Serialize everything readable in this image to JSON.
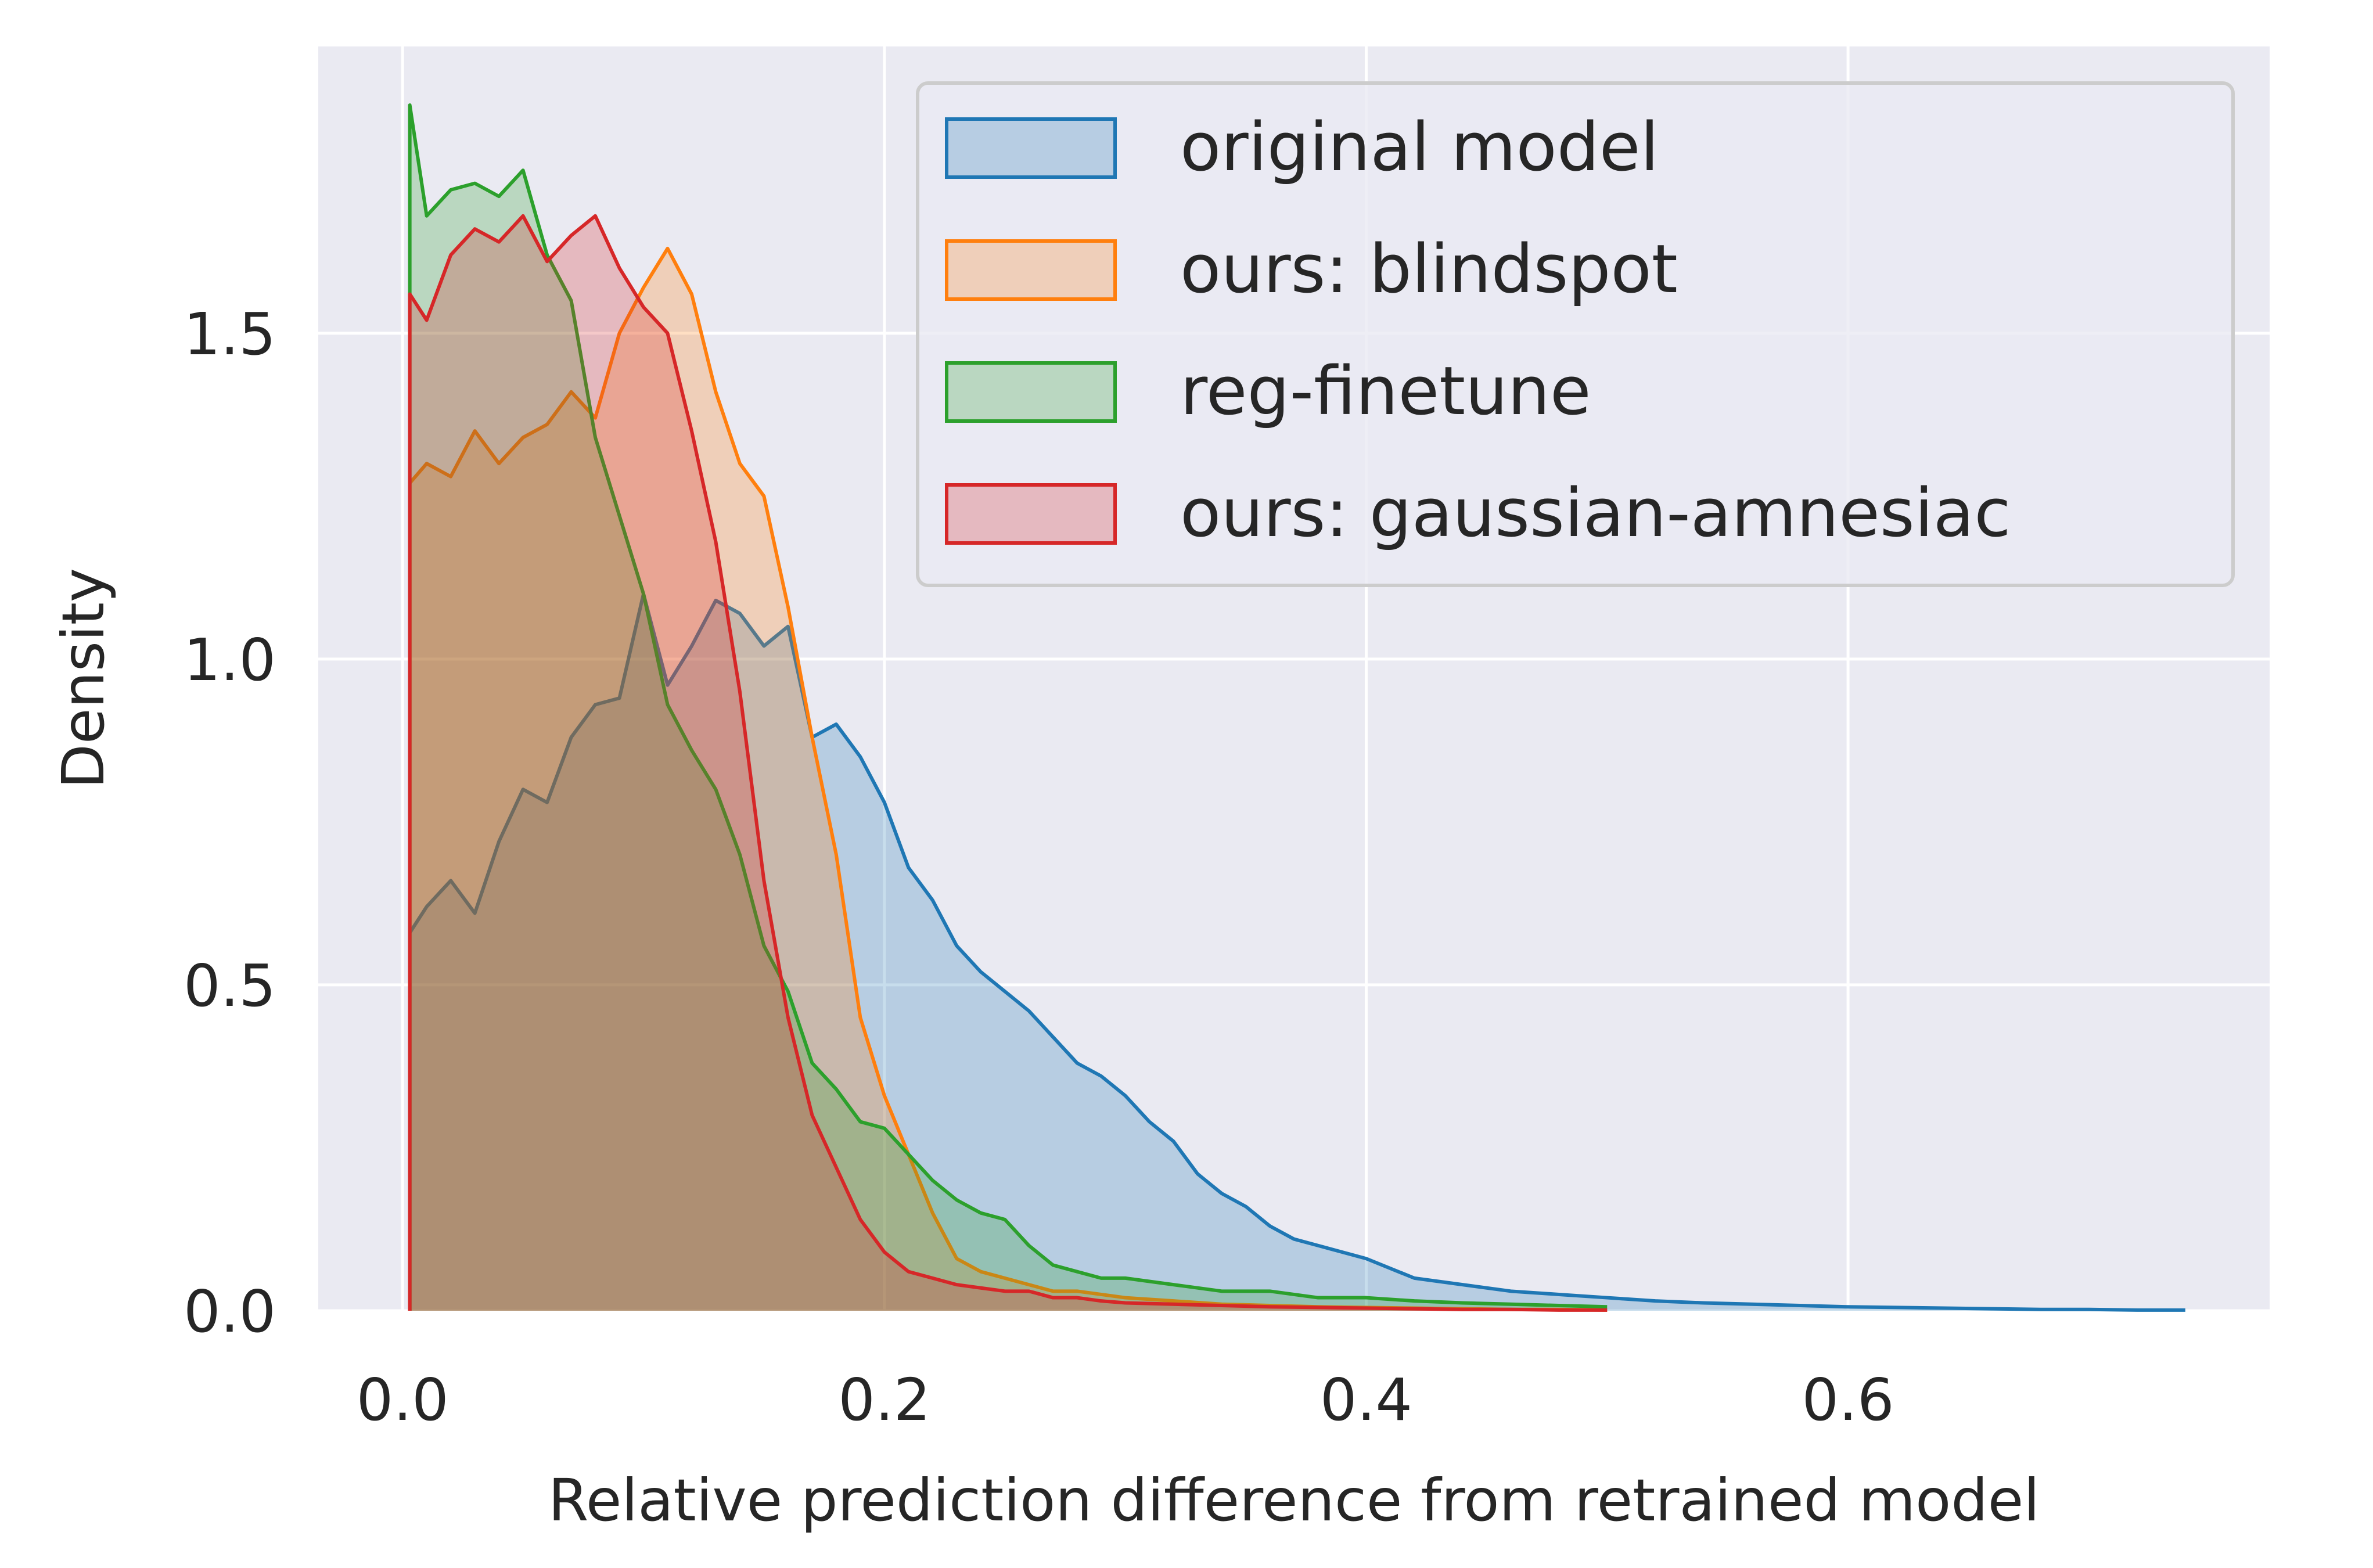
{
  "chart_data": {
    "type": "area",
    "title": "",
    "xlabel": "Relative prediction difference from retrained model",
    "ylabel": "Density",
    "xlim": [
      -0.035,
      0.775
    ],
    "ylim": [
      0,
      1.94
    ],
    "xticks": [
      0.0,
      0.2,
      0.4,
      0.6
    ],
    "xtick_labels": [
      "0.0",
      "0.2",
      "0.4",
      "0.6"
    ],
    "yticks": [
      0.0,
      0.5,
      1.0,
      1.5
    ],
    "ytick_labels": [
      "0.0",
      "0.5",
      "1.0",
      "1.5"
    ],
    "grid": true,
    "legend_position": "top-right",
    "series": [
      {
        "name": "original model",
        "color": "#1f77b4",
        "x": [
          0.003,
          0.01,
          0.02,
          0.03,
          0.04,
          0.05,
          0.06,
          0.07,
          0.08,
          0.09,
          0.1,
          0.11,
          0.12,
          0.13,
          0.14,
          0.15,
          0.16,
          0.17,
          0.18,
          0.19,
          0.2,
          0.21,
          0.22,
          0.23,
          0.24,
          0.25,
          0.26,
          0.27,
          0.28,
          0.29,
          0.3,
          0.31,
          0.32,
          0.33,
          0.34,
          0.35,
          0.36,
          0.37,
          0.38,
          0.39,
          0.4,
          0.42,
          0.44,
          0.46,
          0.48,
          0.5,
          0.52,
          0.54,
          0.56,
          0.58,
          0.6,
          0.62,
          0.64,
          0.66,
          0.68,
          0.7,
          0.72,
          0.74
        ],
        "values": [
          0.58,
          0.62,
          0.66,
          0.61,
          0.72,
          0.8,
          0.78,
          0.88,
          0.93,
          0.94,
          1.1,
          0.96,
          1.02,
          1.09,
          1.07,
          1.02,
          1.05,
          0.88,
          0.9,
          0.85,
          0.78,
          0.68,
          0.63,
          0.56,
          0.52,
          0.49,
          0.46,
          0.42,
          0.38,
          0.36,
          0.33,
          0.29,
          0.26,
          0.21,
          0.18,
          0.16,
          0.13,
          0.11,
          0.1,
          0.09,
          0.08,
          0.05,
          0.04,
          0.03,
          0.025,
          0.02,
          0.015,
          0.012,
          0.01,
          0.008,
          0.006,
          0.005,
          0.004,
          0.003,
          0.002,
          0.002,
          0.001,
          0.001
        ]
      },
      {
        "name": "ours: blindspot",
        "color": "#ff7f0e",
        "x": [
          0.003,
          0.01,
          0.02,
          0.03,
          0.04,
          0.05,
          0.06,
          0.07,
          0.08,
          0.09,
          0.1,
          0.11,
          0.12,
          0.13,
          0.14,
          0.15,
          0.16,
          0.17,
          0.18,
          0.19,
          0.2,
          0.21,
          0.22,
          0.23,
          0.24,
          0.25,
          0.26,
          0.27,
          0.28,
          0.29,
          0.3,
          0.32,
          0.34,
          0.36,
          0.38,
          0.4,
          0.42,
          0.44,
          0.46,
          0.48,
          0.5
        ],
        "values": [
          1.27,
          1.3,
          1.28,
          1.35,
          1.3,
          1.34,
          1.36,
          1.41,
          1.37,
          1.5,
          1.57,
          1.63,
          1.56,
          1.41,
          1.3,
          1.25,
          1.08,
          0.88,
          0.7,
          0.45,
          0.33,
          0.24,
          0.15,
          0.08,
          0.06,
          0.05,
          0.04,
          0.03,
          0.03,
          0.025,
          0.02,
          0.015,
          0.01,
          0.008,
          0.006,
          0.005,
          0.004,
          0.003,
          0.002,
          0.002,
          0.001
        ]
      },
      {
        "name": "reg-finetune",
        "color": "#2ca02c",
        "x": [
          0.003,
          0.01,
          0.02,
          0.03,
          0.04,
          0.05,
          0.06,
          0.07,
          0.08,
          0.09,
          0.1,
          0.11,
          0.12,
          0.13,
          0.14,
          0.15,
          0.16,
          0.17,
          0.18,
          0.19,
          0.2,
          0.21,
          0.22,
          0.23,
          0.24,
          0.25,
          0.26,
          0.27,
          0.28,
          0.29,
          0.3,
          0.32,
          0.34,
          0.36,
          0.38,
          0.4,
          0.42,
          0.44,
          0.46,
          0.48,
          0.5
        ],
        "values": [
          1.85,
          1.68,
          1.72,
          1.73,
          1.71,
          1.75,
          1.62,
          1.55,
          1.34,
          1.22,
          1.1,
          0.93,
          0.86,
          0.8,
          0.7,
          0.56,
          0.49,
          0.38,
          0.34,
          0.29,
          0.28,
          0.24,
          0.2,
          0.17,
          0.15,
          0.14,
          0.1,
          0.07,
          0.06,
          0.05,
          0.05,
          0.04,
          0.03,
          0.03,
          0.02,
          0.02,
          0.015,
          0.012,
          0.01,
          0.008,
          0.006
        ]
      },
      {
        "name": "ours: gaussian-amnesiac",
        "color": "#d62728",
        "x": [
          0.003,
          0.01,
          0.02,
          0.03,
          0.04,
          0.05,
          0.06,
          0.07,
          0.08,
          0.09,
          0.1,
          0.11,
          0.12,
          0.13,
          0.14,
          0.15,
          0.16,
          0.17,
          0.18,
          0.19,
          0.2,
          0.21,
          0.22,
          0.23,
          0.24,
          0.25,
          0.26,
          0.27,
          0.28,
          0.29,
          0.3,
          0.32,
          0.34,
          0.36,
          0.38,
          0.4,
          0.42,
          0.44,
          0.46,
          0.48,
          0.5
        ],
        "values": [
          1.56,
          1.52,
          1.62,
          1.66,
          1.64,
          1.68,
          1.61,
          1.65,
          1.68,
          1.6,
          1.54,
          1.5,
          1.35,
          1.18,
          0.95,
          0.66,
          0.45,
          0.3,
          0.22,
          0.14,
          0.09,
          0.06,
          0.05,
          0.04,
          0.035,
          0.03,
          0.03,
          0.02,
          0.02,
          0.015,
          0.012,
          0.01,
          0.008,
          0.006,
          0.005,
          0.004,
          0.003,
          0.002,
          0.002,
          0.001,
          0.001
        ]
      }
    ]
  }
}
